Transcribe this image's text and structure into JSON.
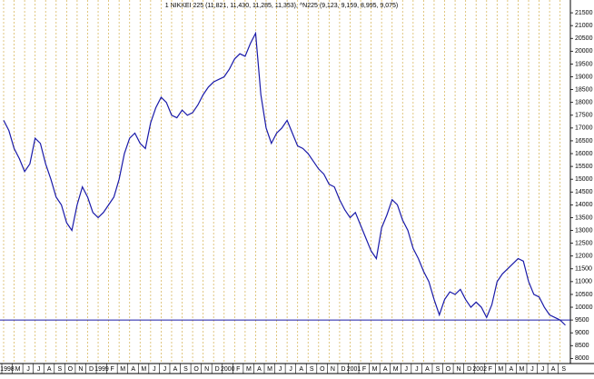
{
  "chart_data": {
    "type": "line",
    "title": "1 NIKKEI 225 (11,821, 11,430, 11,285, 11,353), ^N225 (9,123, 9,159, 8,995, 9,075)",
    "categories": [
      "1998",
      null,
      "M",
      null,
      "J",
      null,
      "J",
      null,
      "A",
      null,
      "S",
      null,
      "O",
      null,
      "N",
      null,
      "D",
      null,
      "1999",
      null,
      "F",
      null,
      "M",
      null,
      "A",
      null,
      "M",
      null,
      "J",
      null,
      "J",
      null,
      "A",
      null,
      "S",
      null,
      "O",
      null,
      "N",
      null,
      "D",
      null,
      "2000",
      null,
      "F",
      null,
      "M",
      null,
      "A",
      null,
      "M",
      null,
      "J",
      null,
      "J",
      null,
      "A",
      null,
      "S",
      null,
      "O",
      null,
      "N",
      null,
      "D",
      null,
      "2001",
      null,
      "F",
      null,
      "M",
      null,
      "A",
      null,
      "M",
      null,
      "J",
      null,
      "J",
      null,
      "A",
      null,
      "S",
      null,
      "O",
      null,
      "N",
      null,
      "D",
      null,
      "2002",
      null,
      "F",
      null,
      "M",
      null,
      "A",
      null,
      "M",
      null,
      "J",
      null,
      "J",
      null,
      "A",
      null,
      "S",
      null
    ],
    "series": [
      {
        "color": "#1a1aa8",
        "values": [
          17300,
          16900,
          16200,
          15800,
          15300,
          15600,
          16600,
          16400,
          15600,
          15000,
          14300,
          14000,
          13300,
          13000,
          14000,
          14700,
          14300,
          13700,
          13500,
          13700,
          14000,
          14300,
          15000,
          16000,
          16600,
          16800,
          16400,
          16200,
          17200,
          17800,
          18200,
          18000,
          17500,
          17400,
          17700,
          17500,
          17600,
          17900,
          18300,
          18600,
          18800,
          18900,
          19000,
          19300,
          19700,
          19900,
          19800,
          20300,
          20700,
          18300,
          17000,
          16400,
          16800,
          17000,
          17300,
          16800,
          16300,
          16200,
          16000,
          15700,
          15400,
          15200,
          14800,
          14700,
          14200,
          13800,
          13500,
          13700,
          13200,
          12700,
          12200,
          11900,
          13100,
          13600,
          14200,
          14000,
          13400,
          13000,
          12300,
          11900,
          11400,
          11000,
          10300,
          9700,
          10300,
          10600,
          10500,
          10700,
          10300,
          10000,
          10200,
          10000,
          9600,
          10100,
          11000,
          11300,
          11500,
          11700,
          11900,
          11800,
          11000,
          10500,
          10400,
          10000,
          9700,
          9600,
          9500,
          9300
        ]
      }
    ],
    "hline": 9500,
    "hline_color": "#1a1aa8",
    "ylim": [
      7800,
      22000
    ],
    "yticks": [
      8000,
      8500,
      9000,
      9500,
      10000,
      10500,
      11000,
      11500,
      12000,
      12500,
      13000,
      13500,
      14000,
      14500,
      15000,
      15500,
      16000,
      16500,
      17000,
      17500,
      18000,
      18500,
      19000,
      19500,
      20000,
      20500,
      21000,
      21500
    ],
    "grid": true,
    "grid_color": "#d8b860"
  }
}
